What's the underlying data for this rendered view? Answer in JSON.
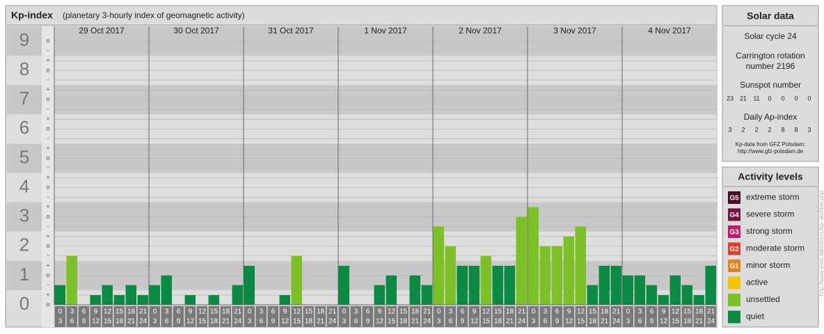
{
  "chart_data": {
    "type": "bar",
    "title": "Kp-index",
    "subtitle": "(planetary 3-hourly index of geomagnetic activity)",
    "days": [
      "29 Oct 2017",
      "30 Oct 2017",
      "31 Oct 2017",
      "1 Nov 2017",
      "2 Nov 2017",
      "3 Nov 2017",
      "4 Nov 2017"
    ],
    "hour_ranges": [
      [
        0,
        3
      ],
      [
        3,
        6
      ],
      [
        6,
        9
      ],
      [
        9,
        12
      ],
      [
        12,
        15
      ],
      [
        15,
        18
      ],
      [
        18,
        21
      ],
      [
        21,
        24
      ]
    ],
    "values": [
      0.67,
      1.67,
      0,
      0.33,
      0.67,
      0.33,
      0.67,
      0.33,
      0.67,
      1,
      0,
      0.33,
      0,
      0.33,
      0,
      0.67,
      1.33,
      0,
      0,
      0.33,
      1.67,
      0,
      0,
      0,
      1.33,
      0,
      0,
      0.67,
      1,
      0,
      1,
      0.67,
      2.67,
      2,
      1.33,
      1.33,
      1.67,
      1.33,
      1.33,
      3,
      3.33,
      2,
      2,
      2.33,
      2.67,
      0.67,
      1.33,
      1.33,
      1,
      1,
      0.67,
      0.33,
      1,
      0.67,
      0.33,
      1.33
    ],
    "bar_colors": [
      "#0a8a43",
      "#7cc128",
      "#0a8a43",
      "#0a8a43",
      "#0a8a43",
      "#0a8a43",
      "#0a8a43",
      "#0a8a43",
      "#0a8a43",
      "#0a8a43",
      "#0a8a43",
      "#0a8a43",
      "#0a8a43",
      "#0a8a43",
      "#0a8a43",
      "#0a8a43",
      "#0a8a43",
      "#0a8a43",
      "#0a8a43",
      "#0a8a43",
      "#7cc128",
      "#0a8a43",
      "#0a8a43",
      "#0a8a43",
      "#0a8a43",
      "#0a8a43",
      "#0a8a43",
      "#0a8a43",
      "#0a8a43",
      "#0a8a43",
      "#0a8a43",
      "#0a8a43",
      "#7cc128",
      "#7cc128",
      "#0a8a43",
      "#0a8a43",
      "#7cc128",
      "#0a8a43",
      "#0a8a43",
      "#7cc128",
      "#7cc128",
      "#7cc128",
      "#7cc128",
      "#7cc128",
      "#7cc128",
      "#0a8a43",
      "#0a8a43",
      "#0a8a43",
      "#0a8a43",
      "#0a8a43",
      "#0a8a43",
      "#0a8a43",
      "#0a8a43",
      "#0a8a43",
      "#0a8a43",
      "#0a8a43"
    ],
    "ylim": [
      0,
      9.5
    ],
    "yticks": [
      0,
      1,
      2,
      3,
      4,
      5,
      6,
      7,
      8,
      9
    ],
    "minor_yticks": [
      {
        "value": 0,
        "label": "o"
      },
      {
        "value": 0.33,
        "label": "+"
      },
      {
        "value": 0.67,
        "label": "-"
      },
      {
        "value": 1,
        "label": "o"
      },
      {
        "value": 1.33,
        "label": "+"
      },
      {
        "value": 1.67,
        "label": "-"
      },
      {
        "value": 2,
        "label": "o"
      },
      {
        "value": 2.33,
        "label": "+"
      },
      {
        "value": 2.67,
        "label": "-"
      },
      {
        "value": 3,
        "label": "o"
      },
      {
        "value": 3.33,
        "label": "+"
      },
      {
        "value": 3.67,
        "label": "-"
      },
      {
        "value": 4,
        "label": "o"
      },
      {
        "value": 4.33,
        "label": "+"
      },
      {
        "value": 4.67,
        "label": "-"
      },
      {
        "value": 5,
        "label": "o"
      },
      {
        "value": 5.33,
        "label": "+"
      },
      {
        "value": 5.67,
        "label": "-"
      },
      {
        "value": 6,
        "label": "o"
      },
      {
        "value": 6.33,
        "label": "+"
      },
      {
        "value": 6.67,
        "label": "-"
      },
      {
        "value": 7,
        "label": "o"
      },
      {
        "value": 7.33,
        "label": "+"
      },
      {
        "value": 7.67,
        "label": "-"
      },
      {
        "value": 8,
        "label": "o"
      },
      {
        "value": 8.33,
        "label": "+"
      },
      {
        "value": 8.67,
        "label": "-"
      },
      {
        "value": 9,
        "label": "o"
      }
    ]
  },
  "solar": {
    "title": "Solar data",
    "cycle": "Solar cycle 24",
    "carrington": [
      "Carrington rotation",
      "number 2196"
    ],
    "sunspot_label": "Sunspot number",
    "sunspots": [
      23,
      21,
      11,
      0,
      0,
      0,
      0
    ],
    "ap_label": "Daily Ap-index",
    "ap": [
      3,
      2,
      2,
      2,
      8,
      8,
      3
    ],
    "source": [
      "Kp-data from GFZ Potsdam:",
      "http://www.gfz-potsdam.de"
    ]
  },
  "levels": {
    "title": "Activity levels",
    "items": [
      {
        "code": "G5",
        "name": "extreme storm",
        "color": "#4a0a26"
      },
      {
        "code": "G4",
        "name": "severe storm",
        "color": "#7a1240"
      },
      {
        "code": "G3",
        "name": "strong storm",
        "color": "#c01a6a"
      },
      {
        "code": "G2",
        "name": "moderate storm",
        "color": "#e0402a"
      },
      {
        "code": "G1",
        "name": "minor storm",
        "color": "#e8801e"
      },
      {
        "code": null,
        "name": "active",
        "color": "#f5c400"
      },
      {
        "code": null,
        "name": "unsettled",
        "color": "#7cc128"
      },
      {
        "code": null,
        "name": "quiet",
        "color": "#0a8a43"
      }
    ]
  },
  "watermark": "http://www.tesis.lebedev.ru/kp_archive.php"
}
